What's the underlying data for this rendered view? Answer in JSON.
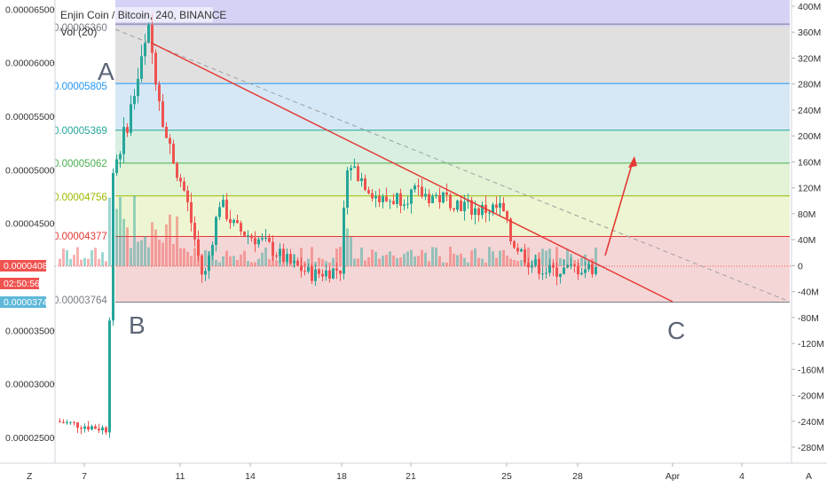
{
  "header": {
    "title": "Enjin Coin / Bitcoin, 240, BINANCE",
    "indicator": "Vol (20)"
  },
  "price_badges": {
    "current": "0.00004084",
    "countdown": "02:50:56",
    "low": "0.00003743"
  },
  "corner_labels": {
    "left": "Z",
    "right": "A"
  },
  "colors": {
    "candle_up": "#26a69a",
    "candle_down": "#ef5350",
    "trendline": "#e53935",
    "projection_arrow": "#e53935",
    "fib_dashed": "#9e9e9e"
  },
  "chart_data": {
    "type": "candlestick",
    "title": "Enjin Coin / Bitcoin, 240, BINANCE",
    "price_axis": {
      "range": [
        2.26e-05,
        6.585e-05
      ],
      "ticks": [
        "0.00006500",
        "0.00006000",
        "0.00005500",
        "0.00005000",
        "0.00004500",
        "0.00003500",
        "0.00003000",
        "0.00002500"
      ]
    },
    "volume_axis": {
      "ticks": [
        "400M",
        "360M",
        "320M",
        "280M",
        "240M",
        "200M",
        "160M",
        "120M",
        "80M",
        "40M",
        "0",
        "-40M",
        "-80M",
        "-120M",
        "-160M",
        "-200M",
        "-240M",
        "-280M"
      ]
    },
    "time_axis": {
      "ticks": [
        "7",
        "11",
        "14",
        "18",
        "21",
        "25",
        "28",
        "Apr",
        "4"
      ]
    },
    "fib_levels": [
      {
        "label": "0.00006360",
        "value": 6.36e-05,
        "color": "#787b86",
        "fill": "#e0e0e0"
      },
      {
        "label": "0.00005805",
        "value": 5.805e-05,
        "color": "#2196f3",
        "fill": "#d6e8f5"
      },
      {
        "label": "0.00005369",
        "value": 5.369e-05,
        "color": "#26a69a",
        "fill": "#d8efe2"
      },
      {
        "label": "0.00005062",
        "value": 5.062e-05,
        "color": "#4caf50",
        "fill": "#e2f3d6"
      },
      {
        "label": "0.00004756",
        "value": 4.756e-05,
        "color": "#9bbb00",
        "fill": "#eef5d2"
      },
      {
        "label": "0.00004377",
        "value": 4.377e-05,
        "color": "#e53935",
        "fill": "#f5d6d6"
      },
      {
        "label": "0.00003764",
        "value": 3.764e-05,
        "color": "#787b86",
        "fill": null
      }
    ],
    "annotations": [
      "A",
      "B",
      "C"
    ],
    "key_prices": {
      "A_high": 6.38e-05,
      "B_base": 3.75e-05,
      "current": 4.084e-05
    }
  }
}
